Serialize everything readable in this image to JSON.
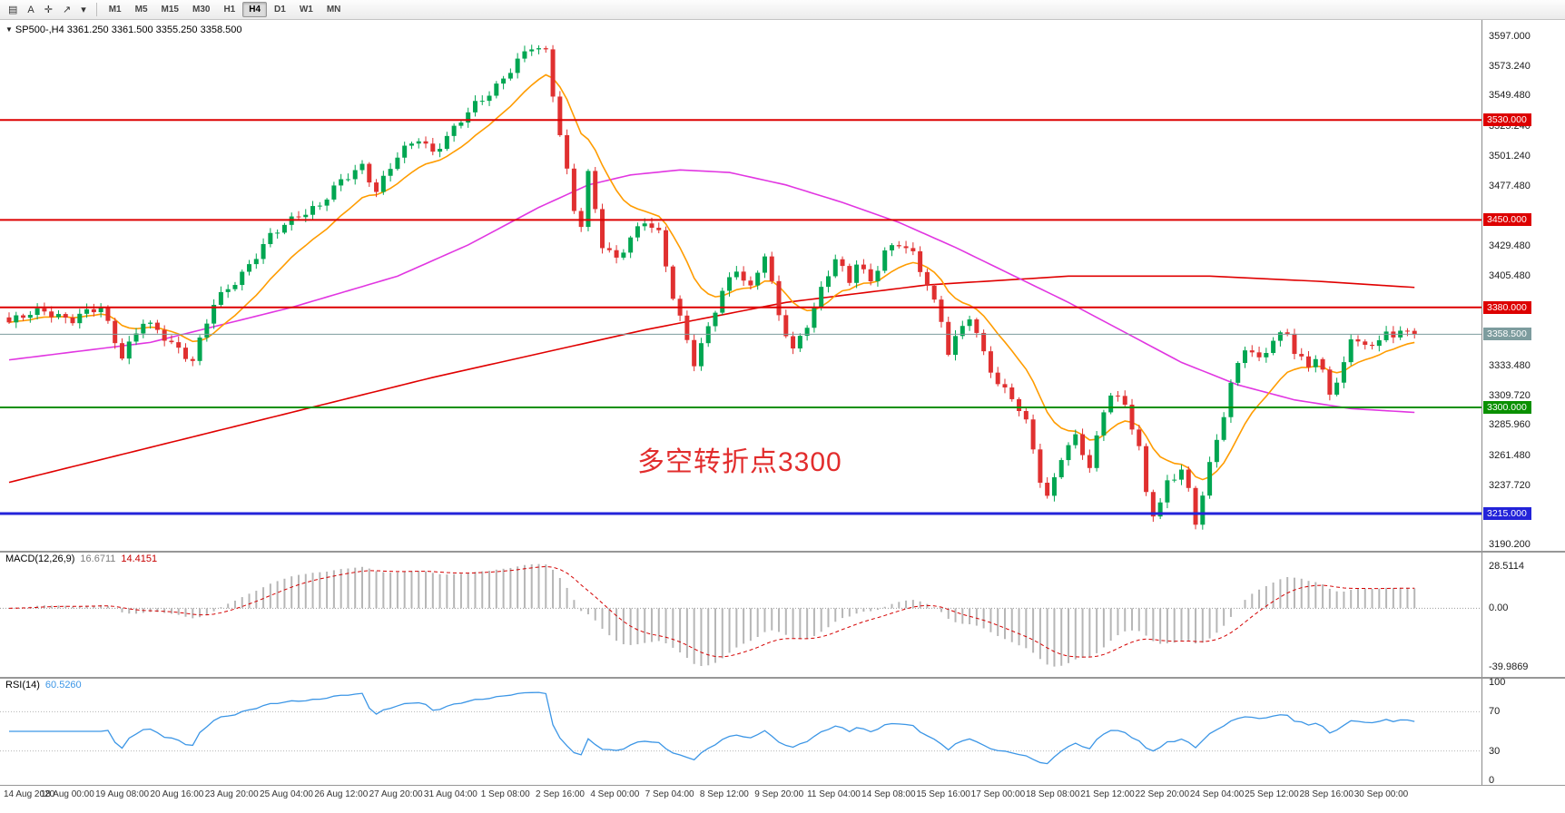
{
  "toolbar": {
    "tool_buttons": [
      {
        "name": "toolbar-handle-icon",
        "glyph": "▤"
      },
      {
        "name": "text-annotation-button",
        "glyph": "A"
      },
      {
        "name": "crosshair-tool-icon",
        "glyph": "✛"
      },
      {
        "name": "draw-tools-icon",
        "glyph": "↗"
      },
      {
        "name": "draw-tools-caret-icon",
        "glyph": "▾"
      }
    ],
    "timeframes": [
      {
        "label": "M1",
        "active": false
      },
      {
        "label": "M5",
        "active": false
      },
      {
        "label": "M15",
        "active": false
      },
      {
        "label": "M30",
        "active": false
      },
      {
        "label": "H1",
        "active": false
      },
      {
        "label": "H4",
        "active": true
      },
      {
        "label": "D1",
        "active": false
      },
      {
        "label": "W1",
        "active": false
      },
      {
        "label": "MN",
        "active": false
      }
    ]
  },
  "main_chart": {
    "collapse_glyph": "▼",
    "title": "SP500-,H4 3361.250 3361.500 3355.250 3358.500",
    "annotation": {
      "text": "多空转折点3300",
      "color": "#e22d2d"
    },
    "current_price": {
      "label": "3358.500",
      "price": 3358.5,
      "color": "#7d9c9e"
    },
    "hlines": [
      {
        "label": "3530.000",
        "price": 3530,
        "color": "#dd0000",
        "width": 2
      },
      {
        "label": "3450.000",
        "price": 3450,
        "color": "#dd0000",
        "width": 2
      },
      {
        "label": "3380.000",
        "price": 3380,
        "color": "#dd0000",
        "width": 2
      },
      {
        "label": "3300.000",
        "price": 3300,
        "color": "#0a9000",
        "width": 2
      },
      {
        "label": "3215.000",
        "price": 3215,
        "color": "#2323d9",
        "width": 3
      }
    ],
    "price_axis_labels": [
      {
        "text": "3597.000",
        "price": 3597.0
      },
      {
        "text": "3573.240",
        "price": 3573.24
      },
      {
        "text": "3549.480",
        "price": 3549.48
      },
      {
        "text": "3525.240",
        "price": 3525.24
      },
      {
        "text": "3501.240",
        "price": 3501.24
      },
      {
        "text": "3477.480",
        "price": 3477.48
      },
      {
        "text": "3429.480",
        "price": 3429.48
      },
      {
        "text": "3405.480",
        "price": 3405.48
      },
      {
        "text": "3333.480",
        "price": 3333.48
      },
      {
        "text": "3309.720",
        "price": 3309.72
      },
      {
        "text": "3285.960",
        "price": 3285.96
      },
      {
        "text": "3261.480",
        "price": 3261.48
      },
      {
        "text": "3237.720",
        "price": 3237.72
      },
      {
        "text": "3190.200",
        "price": 3190.2
      }
    ]
  },
  "macd_panel": {
    "name": "MACD(12,26,9)",
    "values": [
      "16.6711",
      "14.4151"
    ],
    "axis_labels": [
      {
        "text": "28.5114",
        "value": 28.5114
      },
      {
        "text": "0.00",
        "value": 0
      },
      {
        "text": "-39.9869",
        "value": -39.9869
      }
    ],
    "histogram_color": "#b6b6b6",
    "signal_color": "#d40000"
  },
  "rsi_panel": {
    "name": "RSI(14)",
    "value": "60.5260",
    "axis_labels": [
      {
        "text": "100",
        "value": 100
      },
      {
        "text": "70",
        "value": 70
      },
      {
        "text": "30",
        "value": 30
      },
      {
        "text": "0",
        "value": 0
      }
    ],
    "levels": [
      70,
      30
    ],
    "line_color": "#3c96e6"
  },
  "date_axis": [
    "14 Aug 2020",
    "18 Aug 00:00",
    "19 Aug 08:00",
    "20 Aug 16:00",
    "23 Aug 20:00",
    "25 Aug 04:00",
    "26 Aug 12:00",
    "27 Aug 20:00",
    "31 Aug 04:00",
    "1 Sep 08:00",
    "2 Sep 16:00",
    "4 Sep 00:00",
    "7 Sep 04:00",
    "8 Sep 12:00",
    "9 Sep 20:00",
    "11 Sep 04:00",
    "14 Sep 08:00",
    "15 Sep 16:00",
    "17 Sep 00:00",
    "18 Sep 08:00",
    "21 Sep 12:00",
    "22 Sep 20:00",
    "24 Sep 04:00",
    "25 Sep 12:00",
    "28 Sep 16:00",
    "30 Sep 00:00"
  ],
  "chart_data": {
    "type": "candlestick",
    "symbol": "SP500-",
    "period": "H4",
    "last_ohlc": {
      "open": 3361.25,
      "high": 3361.5,
      "low": 3355.25,
      "close": 3358.5
    },
    "bars": 200,
    "price_axis_range": [
      3186,
      3610
    ],
    "up_color": "#00a651",
    "down_color": "#e03030",
    "last_price": 3358.5,
    "second_last_close": 3361.25,
    "close_anchors": [
      [
        0,
        3368
      ],
      [
        5,
        3378
      ],
      [
        9,
        3370
      ],
      [
        13,
        3380
      ],
      [
        16,
        3342
      ],
      [
        19,
        3368
      ],
      [
        23,
        3352
      ],
      [
        26,
        3338
      ],
      [
        29,
        3382
      ],
      [
        33,
        3408
      ],
      [
        37,
        3436
      ],
      [
        41,
        3455
      ],
      [
        44,
        3462
      ],
      [
        47,
        3480
      ],
      [
        50,
        3494
      ],
      [
        52,
        3474
      ],
      [
        55,
        3500
      ],
      [
        58,
        3516
      ],
      [
        60,
        3505
      ],
      [
        63,
        3522
      ],
      [
        66,
        3542
      ],
      [
        69,
        3558
      ],
      [
        72,
        3576
      ],
      [
        74,
        3588
      ],
      [
        76,
        3585
      ],
      [
        78,
        3520
      ],
      [
        80,
        3458
      ],
      [
        81,
        3445
      ],
      [
        82,
        3485
      ],
      [
        84,
        3430
      ],
      [
        86,
        3420
      ],
      [
        88,
        3436
      ],
      [
        90,
        3448
      ],
      [
        92,
        3438
      ],
      [
        94,
        3390
      ],
      [
        96,
        3355
      ],
      [
        97,
        3336
      ],
      [
        99,
        3362
      ],
      [
        101,
        3392
      ],
      [
        103,
        3412
      ],
      [
        105,
        3396
      ],
      [
        107,
        3422
      ],
      [
        109,
        3372
      ],
      [
        111,
        3346
      ],
      [
        113,
        3368
      ],
      [
        115,
        3394
      ],
      [
        117,
        3418
      ],
      [
        119,
        3400
      ],
      [
        120,
        3417
      ],
      [
        122,
        3402
      ],
      [
        124,
        3424
      ],
      [
        126,
        3430
      ],
      [
        128,
        3422
      ],
      [
        130,
        3400
      ],
      [
        132,
        3370
      ],
      [
        133,
        3344
      ],
      [
        135,
        3363
      ],
      [
        136,
        3372
      ],
      [
        138,
        3344
      ],
      [
        140,
        3320
      ],
      [
        142,
        3308
      ],
      [
        144,
        3286
      ],
      [
        145,
        3266
      ],
      [
        146,
        3242
      ],
      [
        147,
        3228
      ],
      [
        149,
        3262
      ],
      [
        151,
        3276
      ],
      [
        153,
        3250
      ],
      [
        155,
        3298
      ],
      [
        156,
        3312
      ],
      [
        158,
        3304
      ],
      [
        160,
        3266
      ],
      [
        161,
        3230
      ],
      [
        162,
        3214
      ],
      [
        163,
        3222
      ],
      [
        164,
        3240
      ],
      [
        166,
        3252
      ],
      [
        167,
        3234
      ],
      [
        168,
        3208
      ],
      [
        170,
        3252
      ],
      [
        172,
        3294
      ],
      [
        173,
        3318
      ],
      [
        174,
        3336
      ],
      [
        175,
        3350
      ],
      [
        177,
        3338
      ],
      [
        179,
        3352
      ],
      [
        181,
        3360
      ],
      [
        182,
        3345
      ],
      [
        184,
        3334
      ],
      [
        185,
        3342
      ],
      [
        186,
        3328
      ],
      [
        187,
        3308
      ],
      [
        189,
        3334
      ],
      [
        190,
        3352
      ],
      [
        191,
        3356
      ],
      [
        193,
        3348
      ],
      [
        194,
        3356
      ],
      [
        195,
        3362
      ],
      [
        196,
        3352
      ],
      [
        197,
        3360
      ],
      [
        198,
        3361.25
      ],
      [
        199,
        3358.5
      ]
    ],
    "ma_fast": {
      "name": "ema-fast",
      "color": "#ff9c00",
      "period": 12
    },
    "ma_mid": {
      "name": "ma-mid",
      "color": "#e136e1",
      "anchors": [
        [
          0,
          3338
        ],
        [
          20,
          3352
        ],
        [
          40,
          3380
        ],
        [
          55,
          3405
        ],
        [
          65,
          3430
        ],
        [
          75,
          3460
        ],
        [
          82,
          3478
        ],
        [
          88,
          3486
        ],
        [
          95,
          3490
        ],
        [
          102,
          3488
        ],
        [
          110,
          3478
        ],
        [
          118,
          3464
        ],
        [
          126,
          3448
        ],
        [
          134,
          3428
        ],
        [
          142,
          3406
        ],
        [
          150,
          3384
        ],
        [
          158,
          3360
        ],
        [
          166,
          3336
        ],
        [
          174,
          3318
        ],
        [
          182,
          3306
        ],
        [
          190,
          3299
        ],
        [
          199,
          3296
        ]
      ]
    },
    "ma_slow": {
      "name": "ma-slow",
      "color": "#e00000",
      "anchors": [
        [
          0,
          3240
        ],
        [
          30,
          3282
        ],
        [
          60,
          3324
        ],
        [
          90,
          3362
        ],
        [
          110,
          3384
        ],
        [
          130,
          3398
        ],
        [
          150,
          3405
        ],
        [
          170,
          3405
        ],
        [
          185,
          3401
        ],
        [
          199,
          3396
        ]
      ]
    },
    "macd": {
      "params": [
        12,
        26,
        9
      ],
      "axis_range": [
        -44,
        34
      ]
    },
    "rsi": {
      "period": 14,
      "axis_range": [
        0,
        100
      ]
    }
  }
}
